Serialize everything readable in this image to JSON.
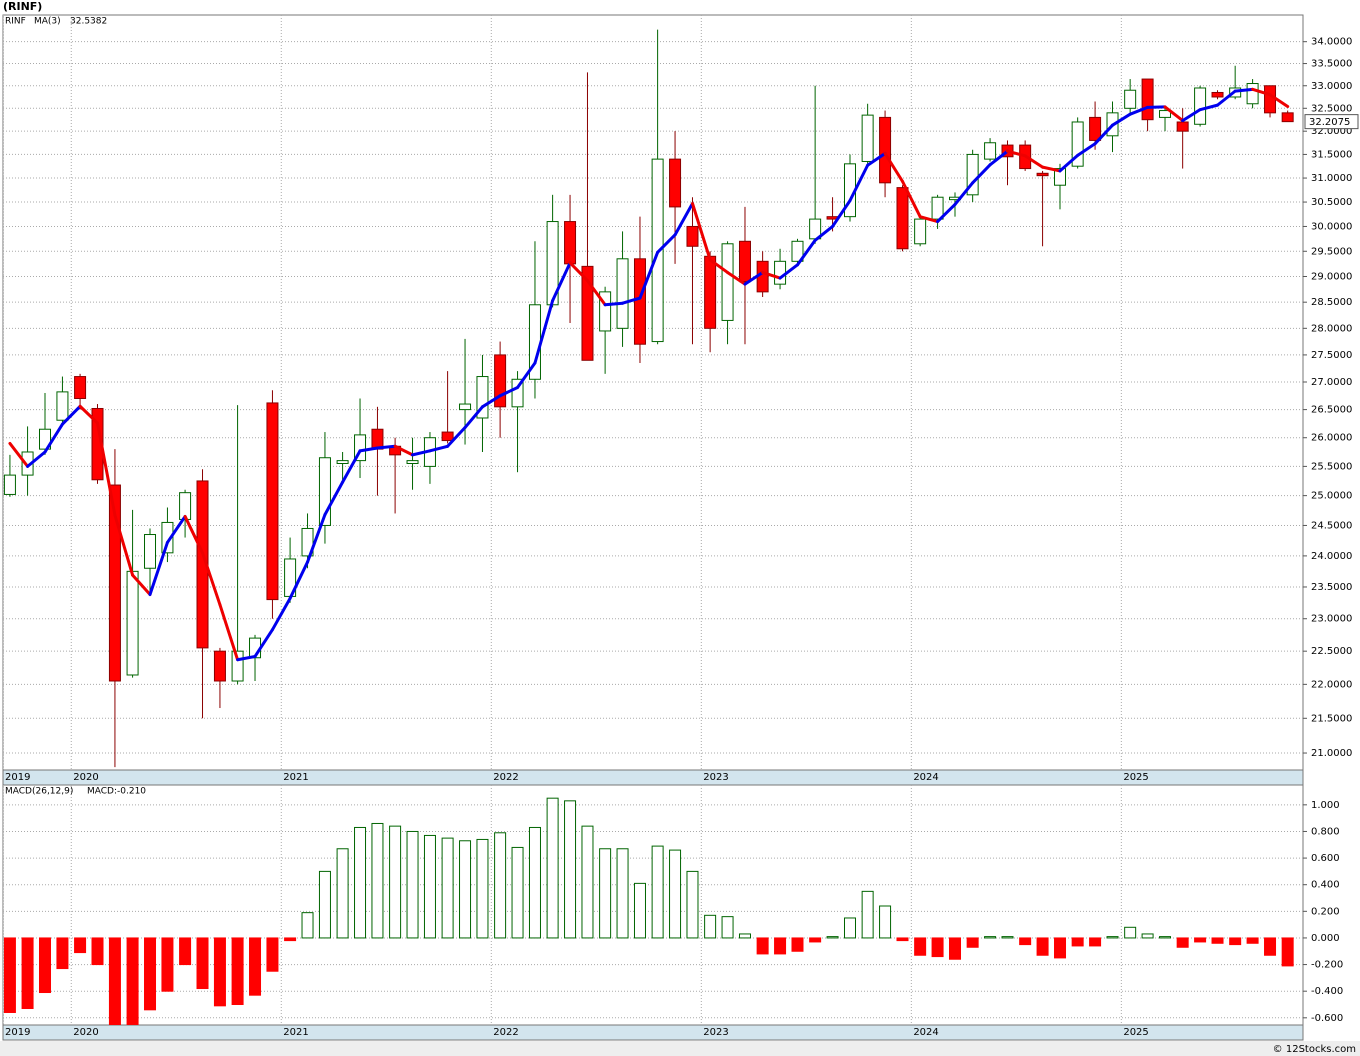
{
  "header": "(RINF)",
  "footer": "© 12Stocks.com",
  "chart_data": [
    {
      "type": "candlestick",
      "symbol": "RINF",
      "log_scale": true,
      "grid": true,
      "up_color": "#006400",
      "down_color": "#ff0000",
      "x": [
        2019.708,
        2019.792,
        2019.875,
        2019.958,
        2020.042,
        2020.125,
        2020.208,
        2020.292,
        2020.375,
        2020.458,
        2020.542,
        2020.625,
        2020.708,
        2020.792,
        2020.875,
        2020.958,
        2021.042,
        2021.125,
        2021.208,
        2021.292,
        2021.375,
        2021.458,
        2021.542,
        2021.625,
        2021.708,
        2021.792,
        2021.875,
        2021.958,
        2022.042,
        2022.125,
        2022.208,
        2022.292,
        2022.375,
        2022.458,
        2022.542,
        2022.625,
        2022.708,
        2022.792,
        2022.875,
        2022.958,
        2023.042,
        2023.125,
        2023.208,
        2023.292,
        2023.375,
        2023.458,
        2023.542,
        2023.625,
        2023.708,
        2023.792,
        2023.875,
        2023.958,
        2024.042,
        2024.125,
        2024.208,
        2024.292,
        2024.375,
        2024.458,
        2024.542,
        2024.625,
        2024.708,
        2024.792,
        2024.875,
        2024.958,
        2025.042,
        2025.125,
        2025.208,
        2025.292,
        2025.375,
        2025.458,
        2025.542,
        2025.625,
        2025.708,
        2025.792
      ],
      "open": [
        25.02,
        25.35,
        25.8,
        26.31,
        27.1,
        26.52,
        25.18,
        22.14,
        23.8,
        24.05,
        24.6,
        25.25,
        22.5,
        22.05,
        22.4,
        26.62,
        23.35,
        24.0,
        24.5,
        25.55,
        25.6,
        26.15,
        25.85,
        25.55,
        25.5,
        26.1,
        26.5,
        26.35,
        27.5,
        26.55,
        27.05,
        28.45,
        30.1,
        29.2,
        27.95,
        28.0,
        29.35,
        27.75,
        31.4,
        30.0,
        29.4,
        28.15,
        29.7,
        29.3,
        28.85,
        29.3,
        29.75,
        30.2,
        30.2,
        31.35,
        32.3,
        30.8,
        29.65,
        30.15,
        30.55,
        30.65,
        31.4,
        31.7,
        31.7,
        31.1,
        30.85,
        31.25,
        32.3,
        31.9,
        32.5,
        33.15,
        32.3,
        32.2,
        32.15,
        32.85,
        32.75,
        32.6,
        33.0,
        32.4
      ],
      "high": [
        25.7,
        26.2,
        26.8,
        27.1,
        27.15,
        26.6,
        25.8,
        24.76,
        24.45,
        24.8,
        25.1,
        25.45,
        22.55,
        26.58,
        22.75,
        26.85,
        24.3,
        24.7,
        26.1,
        25.75,
        26.7,
        26.55,
        26.0,
        26.0,
        26.1,
        27.2,
        27.8,
        27.5,
        27.75,
        27.2,
        29.7,
        30.65,
        30.65,
        33.3,
        28.8,
        29.9,
        30.2,
        34.28,
        32.0,
        30.6,
        29.5,
        29.7,
        30.4,
        29.5,
        29.55,
        29.75,
        33.0,
        30.6,
        31.5,
        32.6,
        32.45,
        30.85,
        30.25,
        30.65,
        30.7,
        31.6,
        31.85,
        31.8,
        31.8,
        31.15,
        31.3,
        32.3,
        32.65,
        32.65,
        33.15,
        33.15,
        32.5,
        32.5,
        33.0,
        32.9,
        33.45,
        33.15,
        33.0,
        32.45
      ],
      "low": [
        24.98,
        25.0,
        25.7,
        26.2,
        26.5,
        25.2,
        20.8,
        22.1,
        23.4,
        23.9,
        24.3,
        21.5,
        21.65,
        22.0,
        22.05,
        23.0,
        23.25,
        23.8,
        24.2,
        25.2,
        25.3,
        25.0,
        24.7,
        25.1,
        25.2,
        25.9,
        25.88,
        25.75,
        26.0,
        25.4,
        26.7,
        28.4,
        28.1,
        27.4,
        27.15,
        27.65,
        27.35,
        27.7,
        29.25,
        27.7,
        27.55,
        27.7,
        27.7,
        28.6,
        28.75,
        29.2,
        29.65,
        29.9,
        30.1,
        31.3,
        30.6,
        29.5,
        29.6,
        29.95,
        30.2,
        30.5,
        31.35,
        30.85,
        31.15,
        29.6,
        30.35,
        31.2,
        31.6,
        31.55,
        32.4,
        32.0,
        32.0,
        31.2,
        32.1,
        32.7,
        32.7,
        32.5,
        32.3,
        32.2
      ],
      "close": [
        25.35,
        25.75,
        26.15,
        26.82,
        26.7,
        25.27,
        22.05,
        23.75,
        24.35,
        24.55,
        25.05,
        22.55,
        22.05,
        22.5,
        22.7,
        23.3,
        23.95,
        24.45,
        25.65,
        25.6,
        26.05,
        25.8,
        25.7,
        25.6,
        26.0,
        25.95,
        26.6,
        27.1,
        26.55,
        27.05,
        28.45,
        30.1,
        29.25,
        27.4,
        28.7,
        29.35,
        27.7,
        31.4,
        30.4,
        29.6,
        28.0,
        29.65,
        28.9,
        28.7,
        29.3,
        29.7,
        30.15,
        30.15,
        31.3,
        32.35,
        30.9,
        29.55,
        30.15,
        30.6,
        30.6,
        31.5,
        31.75,
        31.45,
        31.2,
        31.05,
        31.2,
        32.2,
        31.8,
        32.4,
        32.9,
        32.25,
        32.45,
        32.0,
        32.95,
        32.75,
        32.95,
        33.05,
        32.4,
        32.2075
      ],
      "ma": {
        "name": "MA(3)",
        "up_color": "#0000ee",
        "down_color": "#ee0000",
        "values": [
          25.9,
          25.5,
          25.75,
          26.24,
          26.56,
          26.26,
          24.67,
          23.69,
          23.38,
          24.22,
          24.65,
          24.05,
          23.22,
          22.37,
          22.42,
          22.83,
          23.32,
          23.9,
          24.68,
          25.23,
          25.77,
          25.82,
          25.85,
          25.7,
          25.77,
          25.85,
          26.18,
          26.55,
          26.75,
          26.9,
          27.35,
          28.53,
          29.27,
          28.92,
          28.45,
          28.48,
          28.58,
          29.48,
          29.83,
          30.47,
          29.33,
          29.08,
          28.85,
          29.08,
          28.97,
          29.23,
          29.72,
          30.0,
          30.53,
          31.27,
          31.52,
          30.93,
          30.2,
          30.1,
          30.45,
          30.9,
          31.28,
          31.57,
          31.47,
          31.23,
          31.15,
          31.48,
          31.73,
          32.13,
          32.37,
          32.52,
          32.53,
          32.23,
          32.47,
          32.57,
          32.88,
          32.92,
          32.8,
          32.5382
        ]
      },
      "xlim": [
        2019.675,
        2025.865
      ],
      "xticks": [
        {
          "value": 2019.675,
          "label": "2019"
        },
        2020,
        2021,
        2022,
        2023,
        2024,
        2025
      ],
      "ylim": [
        20.76,
        34.62
      ],
      "yticks": [
        {
          "value": 21,
          "label": "21.0000"
        },
        {
          "value": 21.5,
          "label": "21.5000"
        },
        {
          "value": 22,
          "label": "22.0000"
        },
        {
          "value": 22.5,
          "label": "22.5000"
        },
        {
          "value": 23,
          "label": "23.0000"
        },
        {
          "value": 23.5,
          "label": "23.5000"
        },
        {
          "value": 24,
          "label": "24.0000"
        },
        {
          "value": 24.5,
          "label": "24.5000"
        },
        {
          "value": 25,
          "label": "25.0000"
        },
        {
          "value": 25.5,
          "label": "25.5000"
        },
        {
          "value": 26,
          "label": "26.0000"
        },
        {
          "value": 26.5,
          "label": "26.5000"
        },
        {
          "value": 27,
          "label": "27.0000"
        },
        {
          "value": 27.5,
          "label": "27.5000"
        },
        {
          "value": 28,
          "label": "28.0000"
        },
        {
          "value": 28.5,
          "label": "28.5000"
        },
        {
          "value": 29,
          "label": "29.0000"
        },
        {
          "value": 29.5,
          "label": "29.5000"
        },
        {
          "value": 30,
          "label": "30.0000"
        },
        {
          "value": 30.5,
          "label": "30.5000"
        },
        {
          "value": 31,
          "label": "31.0000"
        },
        {
          "value": 31.5,
          "label": "31.5000"
        },
        {
          "value": 32,
          "label": "32.0000"
        },
        {
          "value": 32.5,
          "label": "32.5000"
        },
        {
          "value": 33,
          "label": "33.0000"
        },
        {
          "value": 33.5,
          "label": "33.5000"
        },
        {
          "value": 34,
          "label": "34.0000"
        }
      ]
    },
    {
      "type": "bar",
      "title": "MACD(26,12,9)",
      "readout": "MACD:-0.210",
      "grid": true,
      "pos_color": "#006400",
      "neg_color": "#ff0000",
      "values": [
        -0.56,
        -0.53,
        -0.41,
        -0.23,
        -0.11,
        -0.2,
        -0.66,
        -0.65,
        -0.54,
        -0.4,
        -0.2,
        -0.38,
        -0.51,
        -0.5,
        -0.43,
        -0.25,
        -0.02,
        0.19,
        0.5,
        0.67,
        0.83,
        0.86,
        0.84,
        0.8,
        0.77,
        0.75,
        0.73,
        0.74,
        0.79,
        0.68,
        0.83,
        1.05,
        1.03,
        0.84,
        0.67,
        0.67,
        0.41,
        0.69,
        0.66,
        0.5,
        0.17,
        0.16,
        0.03,
        -0.12,
        -0.12,
        -0.1,
        -0.03,
        0.01,
        0.15,
        0.35,
        0.24,
        -0.02,
        -0.13,
        -0.14,
        -0.16,
        -0.07,
        0.01,
        0.01,
        -0.05,
        -0.13,
        -0.15,
        -0.06,
        -0.06,
        0.01,
        0.08,
        0.03,
        0.01,
        -0.07,
        -0.03,
        -0.04,
        -0.05,
        -0.04,
        -0.13,
        -0.21
      ],
      "xlim": [
        2019.675,
        2025.865
      ],
      "xticks": [
        {
          "value": 2019.675,
          "label": "2019"
        },
        2020,
        2021,
        2022,
        2023,
        2024,
        2025
      ],
      "ylim": [
        -0.654,
        1.149
      ],
      "yticks": [
        {
          "value": -0.6,
          "label": "-0.600"
        },
        {
          "value": -0.4,
          "label": "-0.400"
        },
        {
          "value": -0.2,
          "label": "-0.200"
        },
        {
          "value": 0,
          "label": "0.000"
        },
        {
          "value": 0.2,
          "label": "0.200"
        },
        {
          "value": 0.4,
          "label": "0.400"
        },
        {
          "value": 0.6,
          "label": "0.600"
        },
        {
          "value": 0.8,
          "label": "0.800"
        },
        {
          "value": 1,
          "label": "1.000"
        }
      ]
    }
  ]
}
